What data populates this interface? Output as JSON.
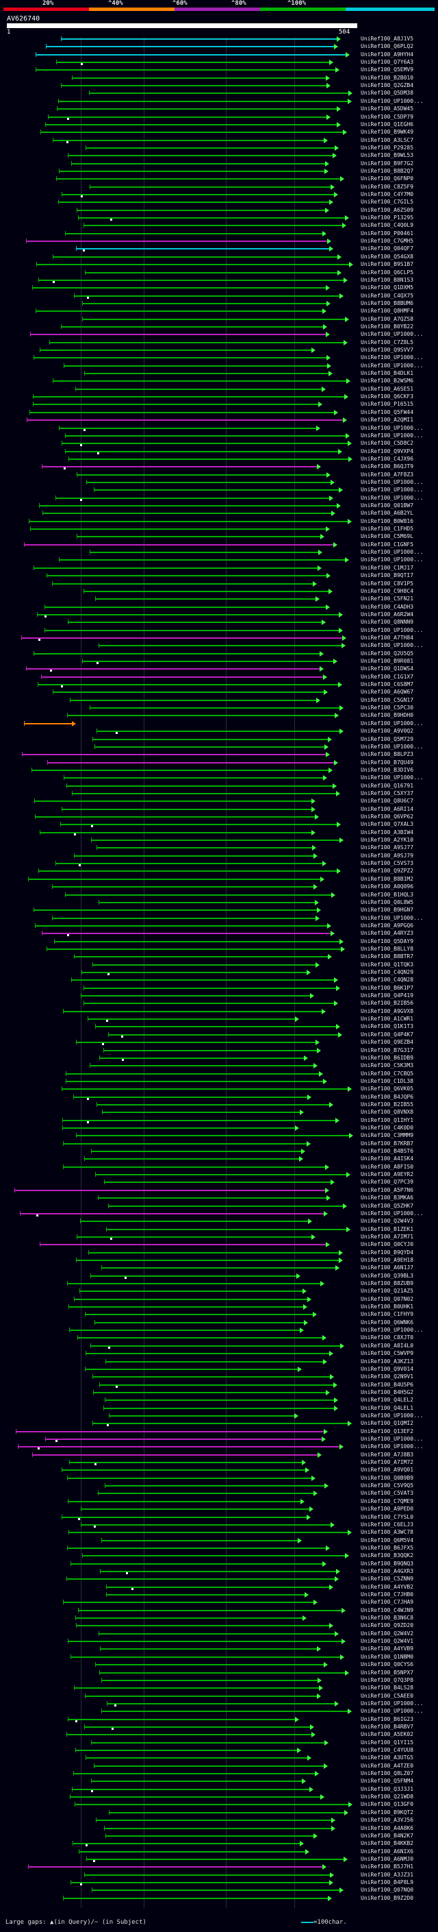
{
  "scale": {
    "labels": [
      "20%",
      "^40%",
      "^60%",
      "^80%",
      "^100%"
    ],
    "colors": [
      "#e0001a",
      "#ff8000",
      "#a020b0",
      "#00b000",
      "#00c8d8"
    ]
  },
  "query": {
    "id": "AV626740",
    "start": "1",
    "end": "504"
  },
  "hit_labels": [
    "UniRef100_A8J1V5",
    "UniRef100_Q6PLQ2",
    "UniRef100_A9HYH4",
    "UniRef100_Q7Y6A3",
    "UniRef100_Q5EMV9",
    "UniRef100_B2B010",
    "UniRef100_Q2GZB4",
    "UniRef100_Q5DM38",
    "UniRef100_UP1000...",
    "UniRef100_A5DW45",
    "UniRef100_C5DP79",
    "UniRef100_Q1EGH6",
    "UniRef100_B9WK49",
    "UniRef100_A3LSC7",
    "UniRef100_P29285",
    "UniRef100_B9WL53",
    "UniRef100_B9F7G2",
    "UniRef100_B8B2Q7",
    "UniRef100_Q6FNP0",
    "UniRef100_C8Z5F9",
    "UniRef100_C4Y7M0",
    "UniRef100_C7GIL5",
    "UniRef100_A6ZS09",
    "UniRef100_P13295",
    "UniRef100_C4Q0L9",
    "UniRef100_P00461",
    "UniRef100_C7GMH5",
    "UniRef100_Q04QF7",
    "UniRef100_Q54GX8",
    "UniRef100_B9S1B7",
    "UniRef100_Q6CLP5",
    "UniRef100_B8N1S3",
    "UniRef100_Q1DXM5",
    "UniRef100_C4QX75",
    "UniRef100_B8BUM6",
    "UniRef100_Q8HMF4",
    "UniRef100_A7QZS8",
    "UniRef100_B0YB22",
    "UniRef100_UP1000...",
    "UniRef100_C7Z8L5",
    "UniRef100_Q9SVV7",
    "UniRef100_UP1000...",
    "UniRef100_UP1000...",
    "UniRef100_B4DLK1",
    "UniRef100_B2WSM6",
    "UniRef100_A6SE51",
    "UniRef100_Q6CKF3",
    "UniRef100_P16515",
    "UniRef100_Q5FW44",
    "UniRef100_A2QMI1",
    "UniRef100_UP1000...",
    "UniRef100_UP1000...",
    "UniRef100_C5D8C2",
    "UniRef100_Q9VXP4",
    "UniRef100_C4JX96",
    "UniRef100_B6QJT9",
    "UniRef100_A7F8Z3",
    "UniRef100_UP1000...",
    "UniRef100_UP1000...",
    "UniRef100_UP1000...",
    "UniRef100_Q01BW7",
    "UniRef100_A6B2YL",
    "UniRef100_B0W816",
    "UniRef100_C1FHD5",
    "UniRef100_C5M69L",
    "UniRef100_C1GNF5",
    "UniRef100_UP1000...",
    "UniRef100_UP1000...",
    "UniRef100_C1MJ17",
    "UniRef100_B9QTI7",
    "UniRef100_C8V1P5",
    "UniRef100_C9H8C4",
    "UniRef100_C5FN21",
    "UniRef100_C4ADH3",
    "UniRef100_A6R2W4",
    "UniRef100_Q8NNN9",
    "UniRef100_UP1000...",
    "UniRef100_A7TH84",
    "UniRef100_UP1000...",
    "UniRef100_Q2U5Q5",
    "UniRef100_B9R081",
    "UniRef100_Q1DWS4",
    "UniRef100_C1G1X7",
    "UniRef100_C6S8M7",
    "UniRef100_A6QW67",
    "UniRef100_C5GN17",
    "UniRef100_C5PC30",
    "UniRef100_B9HDH0",
    "UniRef100_UP1000...",
    "UniRef100_A9V0Q2",
    "UniRef100_Q5M729",
    "UniRef100_UP1000...",
    "UniRef100_B8LPZ3",
    "UniRef100_B7QU49",
    "UniRef100_B3DIV6",
    "UniRef100_UP1000...",
    "UniRef100_Q16791",
    "UniRef100_C5XY37",
    "UniRef100_Q8U6C7",
    "UniRef100_A6RI14",
    "UniRef100_Q6VP62",
    "UniRef100_Q7XAL3",
    "UniRef100_A3BIW4",
    "UniRef100_A2YK10",
    "UniRef100_A9SJ77",
    "UniRef100_A9SJ79",
    "UniRef100_C5VS73",
    "UniRef100_Q9ZPZ2",
    "UniRef100_B8B1M2",
    "UniRef100_A0Q096",
    "UniRef100_B1HQL3",
    "UniRef100_Q0L8W5",
    "UniRef100_B9HGN7",
    "UniRef100_UP1000...",
    "UniRef100_A9PGQ6",
    "UniRef100_A4RYZ3",
    "UniRef100_Q5DAY9",
    "UniRef100_B8LLY8",
    "UniRef100_B8BTR7",
    "UniRef100_Q1TQK3",
    "UniRef100_C4QN29",
    "UniRef100_C4QN28",
    "UniRef100_B6K1P7",
    "UniRef100_Q4P419",
    "UniRef100_B2IB56",
    "UniRef100_A9GVX8",
    "UniRef100_A1CWR1",
    "UniRef100_Q1K1T3",
    "UniRef100_Q4P4K7",
    "UniRef100_Q9EZB4",
    "UniRef100_B7G317",
    "UniRef100_B6IDB9",
    "UniRef100_C5K3M3",
    "UniRef100_C7CBQ5",
    "UniRef100_C1DL38",
    "UniRef100_Q6VK05",
    "UniRef100_B4JQP6",
    "UniRef100_B2IB55",
    "UniRef100_Q8VNX8",
    "UniRef100_Q1IHY1",
    "UniRef100_C4K0D0",
    "UniRef100_C3MMM9",
    "UniRef100_B7KRB7",
    "UniRef100_B4BST6",
    "UniRef100_A4ISK4",
    "UniRef100_A8FIS0",
    "UniRef100_A9EYR2",
    "UniRef100_Q7PC39",
    "UniRef100_A5P7N6",
    "UniRef100_B3MKA6",
    "UniRef100_Q5ZHK7",
    "UniRef100_UP1000...",
    "UniRef100_Q2W4V3",
    "UniRef100_B1ZEK1",
    "UniRef100_A7IM71",
    "UniRef100_Q0CYJ0",
    "UniRef100_B9QYD4",
    "UniRef100_A9EH18",
    "UniRef100_A6N1J7",
    "UniRef100_Q39BL3",
    "UniRef100_B8ZUB9",
    "UniRef100_Q21AZ5",
    "UniRef100_Q07N02",
    "UniRef100_B0UHK1",
    "UniRef100_C1FHY9",
    "UniRef100_Q6WNK6",
    "UniRef100_UP1000...",
    "UniRef100_C8XJT0",
    "UniRef100_A8I4L0",
    "UniRef100_C5WVP9",
    "UniRef100_A3KZ13",
    "UniRef100_Q9V014",
    "UniRef100_Q2N9V1",
    "UniRef100_B4U5P6",
    "UniRef100_B4H5G2",
    "UniRef100_Q4LEL2",
    "UniRef100_Q4LEL1",
    "UniRef100_UP1000...",
    "UniRef100_Q1QMI2",
    "UniRef100_Q13EF2",
    "UniRef100_UP1000...",
    "UniRef100_UP1000...",
    "UniRef100_A7J8B3",
    "UniRef100_A7IM72",
    "UniRef100_A9VQ01",
    "UniRef100_Q0B9B9",
    "UniRef100_C5V9Q5",
    "UniRef100_C5VAT3",
    "UniRef100_C7QME9",
    "UniRef100_A9PED0",
    "UniRef100_C7YSL0",
    "UniRef100_C6ELJ3",
    "UniRef100_A3WC78",
    "UniRef100_Q6M5V4",
    "UniRef100_B6JFX5",
    "UniRef100_B3QQK2",
    "UniRef100_B9QNQ3",
    "UniRef100_A4GXR3",
    "UniRef100_C5ZNN9",
    "UniRef100_A4YVB2",
    "UniRef100_C7JHB0",
    "UniRef100_C7JHA9",
    "UniRef100_C4WJN9",
    "UniRef100_B3N6C8",
    "UniRef100_Q9ZD20",
    "UniRef100_Q2W4V2",
    "UniRef100_Q2W4V1",
    "UniRef100_A4YVB9",
    "UniRef100_Q1NBM0",
    "UniRef100_Q0CYS6",
    "UniRef100_B5NPX7",
    "UniRef100_Q7Q3P8",
    "UniRef100_B4LS28",
    "UniRef100_C5AEE0",
    "UniRef100_UP1000...",
    "UniRef100_UP1000...",
    "UniRef100_B6IG23",
    "UniRef100_B4RBV7",
    "UniRef100_A5EK02",
    "UniRef100_Q1YI15",
    "UniRef100_C4YUU8",
    "UniRef100_A3UTG5",
    "UniRef100_A4TZE0",
    "UniRef100_Q8LZ07",
    "UniRef100_Q5FNM4",
    "UniRef100_Q3J3J1",
    "UniRef100_Q21WD8",
    "UniRef100_Q13GF0",
    "UniRef100_B9KQT2",
    "UniRef100_A3VJ56",
    "UniRef100_A4A8K6",
    "UniRef100_B4N2K7",
    "UniRef100_B4KKB2",
    "UniRef100_A6NIX6",
    "UniRef100_A6NMJ0",
    "UniRef100_B5J7H1",
    "UniRef100_A3JZ31",
    "UniRef100_B4P8L9",
    "UniRef100_Q07NQ0",
    "UniRef100_B9Z2D0"
  ],
  "hit_colors": {
    "cyan_rows": [
      0,
      1,
      2,
      27
    ],
    "magenta_rows": [
      26,
      38,
      49,
      55,
      65,
      77,
      81,
      82,
      92,
      93,
      115,
      148,
      151,
      155,
      179,
      180,
      181,
      182,
      235
    ],
    "orange_rows": [
      88
    ]
  },
  "colors": {
    "green": "#00b000",
    "cyan": "#00c8d8",
    "magenta": "#c020c0",
    "orange": "#ff8000",
    "bright_green": "#40ff40"
  },
  "legend": {
    "left": "Large gaps: ▲(in Query)/~ (in Subject)",
    "right": "=100char."
  }
}
